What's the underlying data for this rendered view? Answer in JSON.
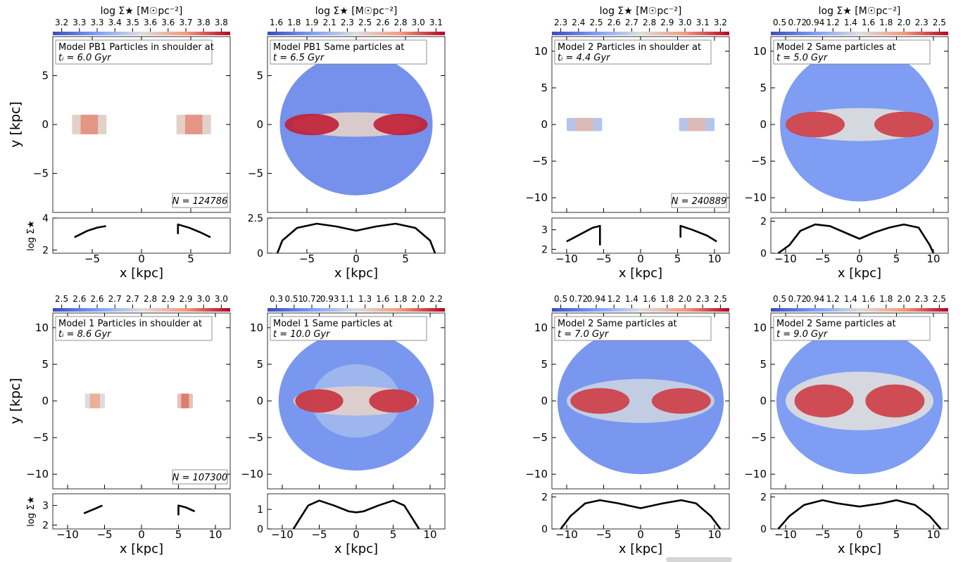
{
  "figure": {
    "colorbar_label": "log Σ★ [M☉pc⁻²]",
    "ylabel": "y [kpc]",
    "xlabel": "x [kpc]",
    "profile_ylabel": "log Σ★"
  },
  "chart_data": [
    {
      "type": "heatmap",
      "panel": "PB1-shoulder",
      "annotation_line1": "Model PB1 Particles in shoulder at",
      "annotation_line2": "tᵢ = 6.0 Gyr",
      "count_label": "N = 124786",
      "colorbar_ticks": [
        "3.2",
        "3.3",
        "3.3",
        "3.4",
        "3.5",
        "3.6",
        "3.6",
        "3.7",
        "3.8",
        "3.8"
      ],
      "xlim": [
        -9,
        9
      ],
      "ylim": [
        -9,
        9
      ],
      "xticks": [
        -5,
        0,
        5
      ],
      "yticks": [
        -5,
        0,
        5
      ],
      "map": {
        "blobs": [
          {
            "x": -5.3,
            "y": 0,
            "w": 3.5,
            "h": 2.0,
            "intensity": 0.55,
            "shape": "box"
          },
          {
            "x": 5.3,
            "y": 0,
            "w": 3.5,
            "h": 2.0,
            "intensity": 0.55,
            "shape": "box"
          }
        ]
      },
      "profile": {
        "ylim": [
          1.8,
          4.0
        ],
        "yticks": [
          2,
          4
        ],
        "segments": [
          [
            [
              -6.8,
              2.8
            ],
            [
              -5.5,
              3.2
            ],
            [
              -4.5,
              3.4
            ],
            [
              -3.6,
              3.5
            ]
          ],
          [
            [
              3.7,
              3.0
            ],
            [
              3.7,
              3.6
            ],
            [
              4.8,
              3.4
            ],
            [
              6.0,
              3.1
            ],
            [
              7.0,
              2.8
            ]
          ]
        ]
      }
    },
    {
      "type": "heatmap",
      "panel": "PB1-same",
      "annotation_line1": "Model PB1 Same particles at",
      "annotation_line2": "t = 6.5 Gyr",
      "colorbar_ticks": [
        "1.6",
        "1.8",
        "1.9",
        "2.1",
        "2.3",
        "2.5",
        "2.6",
        "2.8",
        "3.0",
        "3.1"
      ],
      "xlim": [
        -9,
        9
      ],
      "ylim": [
        -9,
        9
      ],
      "xticks": [
        -5,
        0,
        5
      ],
      "yticks": [
        -5,
        0,
        5
      ],
      "map": {
        "blobs": [
          {
            "x": 0,
            "y": 0,
            "w": 15.5,
            "h": 14.5,
            "intensity": 0.18,
            "shape": "ellipse"
          },
          {
            "x": 0,
            "y": 0,
            "w": 13.0,
            "h": 2.5,
            "intensity": 0.55,
            "shape": "ellipse"
          },
          {
            "x": -4.5,
            "y": 0,
            "w": 5.5,
            "h": 2.2,
            "intensity": 0.95,
            "shape": "ellipse"
          },
          {
            "x": 4.5,
            "y": 0,
            "w": 5.5,
            "h": 2.2,
            "intensity": 0.95,
            "shape": "ellipse"
          }
        ]
      },
      "profile": {
        "ylim": [
          0,
          2.5
        ],
        "yticks": [
          0.0,
          2.5
        ],
        "segments": [
          [
            [
              -8.0,
              0.0
            ],
            [
              -7.5,
              0.9
            ],
            [
              -6.0,
              1.8
            ],
            [
              -4.0,
              2.1
            ],
            [
              -2.0,
              1.9
            ],
            [
              0.0,
              1.6
            ],
            [
              2.0,
              1.9
            ],
            [
              4.0,
              2.1
            ],
            [
              6.0,
              1.8
            ],
            [
              7.5,
              0.9
            ],
            [
              8.0,
              0.0
            ]
          ]
        ]
      }
    },
    {
      "type": "heatmap",
      "panel": "M2-shoulder",
      "annotation_line1": "Model 2 Particles in shoulder at",
      "annotation_line2": "tᵢ = 4.4 Gyr",
      "count_label": "N = 240889",
      "colorbar_ticks": [
        "2.3",
        "2.4",
        "2.5",
        "2.6",
        "2.7",
        "2.8",
        "2.9",
        "3.0",
        "3.1",
        "3.2"
      ],
      "xlim": [
        -12,
        12
      ],
      "ylim": [
        -12,
        12
      ],
      "xticks": [
        -10,
        -5,
        0,
        5,
        10
      ],
      "yticks": [
        -10,
        -5,
        0,
        5,
        10
      ],
      "map": {
        "blobs": [
          {
            "x": -7.6,
            "y": 0,
            "w": 4.8,
            "h": 1.8,
            "intensity": 0.4,
            "shape": "box"
          },
          {
            "x": 7.6,
            "y": 0,
            "w": 4.8,
            "h": 1.8,
            "intensity": 0.4,
            "shape": "box"
          }
        ]
      },
      "profile": {
        "ylim": [
          1.8,
          3.6
        ],
        "yticks": [
          2,
          3
        ],
        "segments": [
          [
            [
              -10.0,
              2.4
            ],
            [
              -8.0,
              2.8
            ],
            [
              -6.5,
              3.1
            ],
            [
              -5.5,
              3.2
            ],
            [
              -5.5,
              2.2
            ]
          ],
          [
            [
              5.4,
              2.6
            ],
            [
              5.4,
              3.2
            ],
            [
              7.0,
              3.0
            ],
            [
              9.0,
              2.7
            ],
            [
              10.3,
              2.4
            ]
          ]
        ]
      }
    },
    {
      "type": "heatmap",
      "panel": "M2-same-5",
      "annotation_line1": "Model 2 Same particles at",
      "annotation_line2": "t = 5.0 Gyr",
      "colorbar_ticks": [
        "0.5",
        "0.72",
        "0.94",
        "1.2",
        "1.4",
        "1.6",
        "1.8",
        "2.0",
        "2.3",
        "2.5"
      ],
      "xlim": [
        -12,
        12
      ],
      "ylim": [
        -12,
        12
      ],
      "xticks": [
        -10,
        -5,
        0,
        5,
        10
      ],
      "yticks": [
        -10,
        -5,
        0,
        5,
        10
      ],
      "map": {
        "blobs": [
          {
            "x": 0,
            "y": 0,
            "w": 21.5,
            "h": 21.0,
            "intensity": 0.22,
            "shape": "ellipse"
          },
          {
            "x": 0,
            "y": 0,
            "w": 20.0,
            "h": 4.5,
            "intensity": 0.5,
            "shape": "ellipse"
          },
          {
            "x": -6.0,
            "y": 0,
            "w": 8.0,
            "h": 3.5,
            "intensity": 0.9,
            "shape": "ellipse"
          },
          {
            "x": 6.0,
            "y": 0,
            "w": 8.0,
            "h": 3.5,
            "intensity": 0.9,
            "shape": "ellipse"
          }
        ]
      },
      "profile": {
        "ylim": [
          0,
          2.2
        ],
        "yticks": [
          0,
          2
        ],
        "segments": [
          [
            [
              -11.0,
              0.0
            ],
            [
              -9.5,
              0.5
            ],
            [
              -8.0,
              1.4
            ],
            [
              -6.0,
              1.8
            ],
            [
              -4.0,
              1.7
            ],
            [
              -2.0,
              1.3
            ],
            [
              0.0,
              0.9
            ],
            [
              2.0,
              1.3
            ],
            [
              4.0,
              1.6
            ],
            [
              6.0,
              1.8
            ],
            [
              8.0,
              1.6
            ],
            [
              9.5,
              0.5
            ],
            [
              10.0,
              0.0
            ]
          ]
        ]
      }
    },
    {
      "type": "heatmap",
      "panel": "M1-shoulder",
      "annotation_line1": "Model 1 Particles in shoulder at",
      "annotation_line2": "tᵢ = 8.6 Gyr",
      "count_label": "N = 107300",
      "colorbar_ticks": [
        "2.5",
        "2.6",
        "2.6",
        "2.7",
        "2.7",
        "2.8",
        "2.9",
        "2.9",
        "3.0",
        "3.0"
      ],
      "xlim": [
        -12,
        12
      ],
      "ylim": [
        -12,
        12
      ],
      "xticks": [
        -10,
        -5,
        0,
        5,
        10
      ],
      "yticks": [
        -10,
        -5,
        0,
        5,
        10
      ],
      "map": {
        "blobs": [
          {
            "x": -6.3,
            "y": 0,
            "w": 2.7,
            "h": 2.0,
            "intensity": 0.5,
            "shape": "box"
          },
          {
            "x": 5.9,
            "y": 0,
            "w": 2.1,
            "h": 2.0,
            "intensity": 0.6,
            "shape": "box"
          }
        ]
      },
      "profile": {
        "ylim": [
          1.8,
          3.6
        ],
        "yticks": [
          2,
          3
        ],
        "segments": [
          [
            [
              -7.8,
              2.6
            ],
            [
              -6.5,
              2.8
            ],
            [
              -5.3,
              3.0
            ]
          ],
          [
            [
              5.0,
              2.5
            ],
            [
              5.0,
              3.0
            ],
            [
              6.0,
              2.9
            ],
            [
              7.2,
              2.7
            ]
          ]
        ]
      }
    },
    {
      "type": "heatmap",
      "panel": "M1-same",
      "annotation_line1": "Model 1 Same particles at",
      "annotation_line2": "t = 10.0 Gyr",
      "colorbar_ticks": [
        "0.3",
        "0.51",
        "0.72",
        "0.93",
        "1.1",
        "1.3",
        "1.6",
        "1.8",
        "2.0",
        "2.2"
      ],
      "xlim": [
        -12,
        12
      ],
      "ylim": [
        -12,
        12
      ],
      "xticks": [
        -10,
        -5,
        0,
        5,
        10
      ],
      "yticks": [
        -10,
        -5,
        0,
        5,
        10
      ],
      "map": {
        "blobs": [
          {
            "x": 0,
            "y": 0,
            "w": 21.0,
            "h": 19.0,
            "intensity": 0.2,
            "shape": "ellipse"
          },
          {
            "x": 0,
            "y": 0,
            "w": 12.0,
            "h": 10.0,
            "intensity": 0.35,
            "shape": "ellipse"
          },
          {
            "x": 0,
            "y": 0,
            "w": 17.0,
            "h": 4.0,
            "intensity": 0.55,
            "shape": "ellipse"
          },
          {
            "x": -5.0,
            "y": 0,
            "w": 6.5,
            "h": 3.2,
            "intensity": 0.92,
            "shape": "ellipse"
          },
          {
            "x": 5.0,
            "y": 0,
            "w": 6.5,
            "h": 3.2,
            "intensity": 0.92,
            "shape": "ellipse"
          }
        ]
      },
      "profile": {
        "ylim": [
          0,
          1.8
        ],
        "yticks": [
          0,
          1
        ],
        "segments": [
          [
            [
              -8.5,
              0.0
            ],
            [
              -7.5,
              0.6
            ],
            [
              -6.5,
              1.2
            ],
            [
              -5.0,
              1.45
            ],
            [
              -3.0,
              1.2
            ],
            [
              -1.0,
              0.9
            ],
            [
              0.0,
              0.85
            ],
            [
              1.0,
              0.9
            ],
            [
              3.0,
              1.2
            ],
            [
              5.0,
              1.45
            ],
            [
              6.5,
              1.2
            ],
            [
              7.5,
              0.6
            ],
            [
              8.5,
              0.0
            ]
          ]
        ]
      }
    },
    {
      "type": "heatmap",
      "panel": "M2-same-7",
      "annotation_line1": "Model 2 Same particles at",
      "annotation_line2": "t = 7.0 Gyr",
      "colorbar_ticks": [
        "0.5",
        "0.72",
        "0.94",
        "1.2",
        "1.4",
        "1.6",
        "1.8",
        "2.0",
        "2.3",
        "2.5"
      ],
      "xlim": [
        -12,
        12
      ],
      "ylim": [
        -12,
        12
      ],
      "xticks": [
        -10,
        -5,
        0,
        5,
        10
      ],
      "yticks": [
        -10,
        -5,
        0,
        5,
        10
      ],
      "map": {
        "blobs": [
          {
            "x": 0,
            "y": 0,
            "w": 22.5,
            "h": 20.0,
            "intensity": 0.2,
            "shape": "ellipse"
          },
          {
            "x": 0,
            "y": 0,
            "w": 20.0,
            "h": 6.0,
            "intensity": 0.45,
            "shape": "ellipse"
          },
          {
            "x": -5.5,
            "y": 0,
            "w": 8.0,
            "h": 3.5,
            "intensity": 0.9,
            "shape": "ellipse"
          },
          {
            "x": 5.5,
            "y": 0,
            "w": 8.0,
            "h": 3.5,
            "intensity": 0.9,
            "shape": "ellipse"
          }
        ]
      },
      "profile": {
        "ylim": [
          0,
          2.2
        ],
        "yticks": [
          0,
          2
        ],
        "segments": [
          [
            [
              -10.8,
              0.0
            ],
            [
              -9.5,
              0.8
            ],
            [
              -7.5,
              1.6
            ],
            [
              -5.5,
              1.8
            ],
            [
              -3.0,
              1.6
            ],
            [
              0.0,
              1.3
            ],
            [
              3.0,
              1.6
            ],
            [
              5.5,
              1.8
            ],
            [
              7.5,
              1.6
            ],
            [
              9.5,
              0.8
            ],
            [
              10.8,
              0.0
            ]
          ]
        ]
      }
    },
    {
      "type": "heatmap",
      "panel": "M2-same-9",
      "annotation_line1": "Model 2 Same particles at",
      "annotation_line2": "t = 9.0 Gyr",
      "colorbar_ticks": [
        "0.5",
        "0.72",
        "0.94",
        "1.2",
        "1.4",
        "1.6",
        "1.8",
        "2.0",
        "2.3",
        "2.5"
      ],
      "xlim": [
        -12,
        12
      ],
      "ylim": [
        -12,
        12
      ],
      "xticks": [
        -10,
        -5,
        0,
        5,
        10
      ],
      "yticks": [
        -10,
        -5,
        0,
        5,
        10
      ],
      "map": {
        "blobs": [
          {
            "x": 0,
            "y": 0,
            "w": 22.5,
            "h": 20.0,
            "intensity": 0.22,
            "shape": "ellipse"
          },
          {
            "x": 0,
            "y": 0,
            "w": 20.0,
            "h": 8.0,
            "intensity": 0.5,
            "shape": "ellipse"
          },
          {
            "x": -4.8,
            "y": 0,
            "w": 8.0,
            "h": 4.5,
            "intensity": 0.9,
            "shape": "ellipse"
          },
          {
            "x": 4.8,
            "y": 0,
            "w": 8.0,
            "h": 4.5,
            "intensity": 0.9,
            "shape": "ellipse"
          }
        ]
      },
      "profile": {
        "ylim": [
          0,
          2.2
        ],
        "yticks": [
          0,
          2
        ],
        "segments": [
          [
            [
              -11.0,
              0.0
            ],
            [
              -9.5,
              0.8
            ],
            [
              -7.5,
              1.5
            ],
            [
              -5.0,
              1.8
            ],
            [
              -3.0,
              1.6
            ],
            [
              0.0,
              1.4
            ],
            [
              3.0,
              1.6
            ],
            [
              5.0,
              1.8
            ],
            [
              7.5,
              1.5
            ],
            [
              9.5,
              0.8
            ],
            [
              11.0,
              0.0
            ]
          ]
        ]
      }
    }
  ]
}
